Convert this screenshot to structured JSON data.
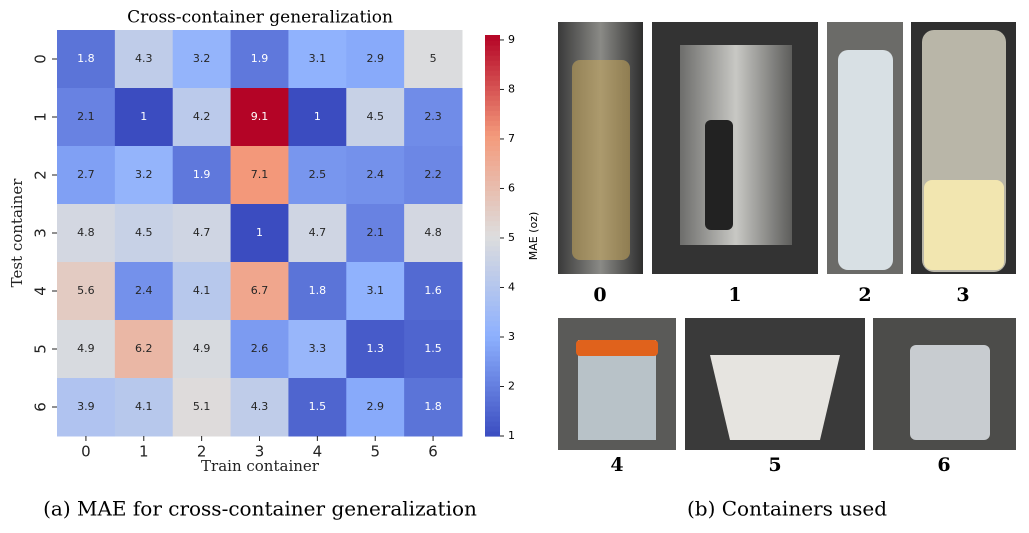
{
  "chart_data": {
    "type": "heatmap",
    "title": "Cross-container generalization",
    "x_categories": [
      "0",
      "1",
      "2",
      "3",
      "4",
      "5",
      "6"
    ],
    "y_categories": [
      "0",
      "1",
      "2",
      "3",
      "4",
      "5",
      "6"
    ],
    "xlabel": "Train container",
    "ylabel": "Test container",
    "values": [
      [
        1.8,
        4.3,
        3.2,
        1.9,
        3.1,
        2.9,
        5
      ],
      [
        2.1,
        1,
        4.2,
        9.1,
        1,
        4.5,
        2.3
      ],
      [
        2.7,
        3.2,
        1.9,
        7.1,
        2.5,
        2.4,
        2.2
      ],
      [
        4.8,
        4.5,
        4.7,
        1,
        4.7,
        2.1,
        4.8
      ],
      [
        5.6,
        2.4,
        4.1,
        6.7,
        1.8,
        3.1,
        1.6
      ],
      [
        4.9,
        6.2,
        4.9,
        2.6,
        3.3,
        1.3,
        1.5
      ],
      [
        3.9,
        4.1,
        5.1,
        4.3,
        1.5,
        2.9,
        1.8
      ]
    ],
    "colormap": "coolwarm",
    "clim": [
      1,
      9.1
    ],
    "cticks": [
      1,
      2,
      3,
      4,
      5,
      6,
      7,
      8,
      9
    ],
    "colorbar_label": "MAE (oz)",
    "caption": "(a) MAE for cross-container generalization"
  },
  "figure_b": {
    "caption": "(b) Containers used",
    "labels": [
      "0",
      "1",
      "2",
      "3",
      "4",
      "5",
      "6"
    ]
  }
}
